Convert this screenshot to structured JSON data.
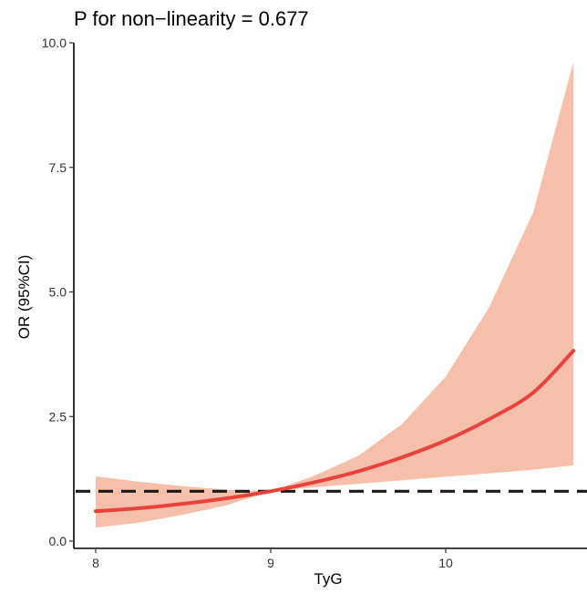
{
  "chart_data": {
    "type": "line",
    "title": "P for non−linearity = 0.677",
    "xlabel": "TyG",
    "ylabel": "OR (95%CI)",
    "xlim": [
      7.92,
      10.8
    ],
    "ylim": [
      0,
      10
    ],
    "x_ticks": [
      {
        "value": 8,
        "label": "8"
      },
      {
        "value": 9,
        "label": "9"
      },
      {
        "value": 10,
        "label": "10"
      }
    ],
    "y_ticks": [
      {
        "value": 0,
        "label": "0.0"
      },
      {
        "value": 2.5,
        "label": "2.5"
      },
      {
        "value": 5,
        "label": "5.0"
      },
      {
        "value": 7.5,
        "label": "7.5"
      },
      {
        "value": 10,
        "label": "10.0"
      }
    ],
    "reference_line": {
      "y": 1.0,
      "style": "dashed",
      "color": "#1a1a1a"
    },
    "series": [
      {
        "color": "#e8433a",
        "ci_color": "#f6bfa9",
        "x": [
          8.0,
          8.25,
          8.5,
          8.75,
          9.0,
          9.25,
          9.5,
          9.75,
          10.0,
          10.25,
          10.5,
          10.73
        ],
        "y": [
          0.6,
          0.66,
          0.75,
          0.86,
          1.0,
          1.18,
          1.4,
          1.68,
          2.02,
          2.45,
          2.98,
          3.82
        ],
        "lower": [
          0.27,
          0.37,
          0.53,
          0.72,
          1.0,
          1.08,
          1.15,
          1.22,
          1.29,
          1.36,
          1.43,
          1.52
        ],
        "upper": [
          1.3,
          1.19,
          1.1,
          1.03,
          1.0,
          1.31,
          1.71,
          2.35,
          3.3,
          4.7,
          6.6,
          9.62
        ]
      }
    ]
  }
}
